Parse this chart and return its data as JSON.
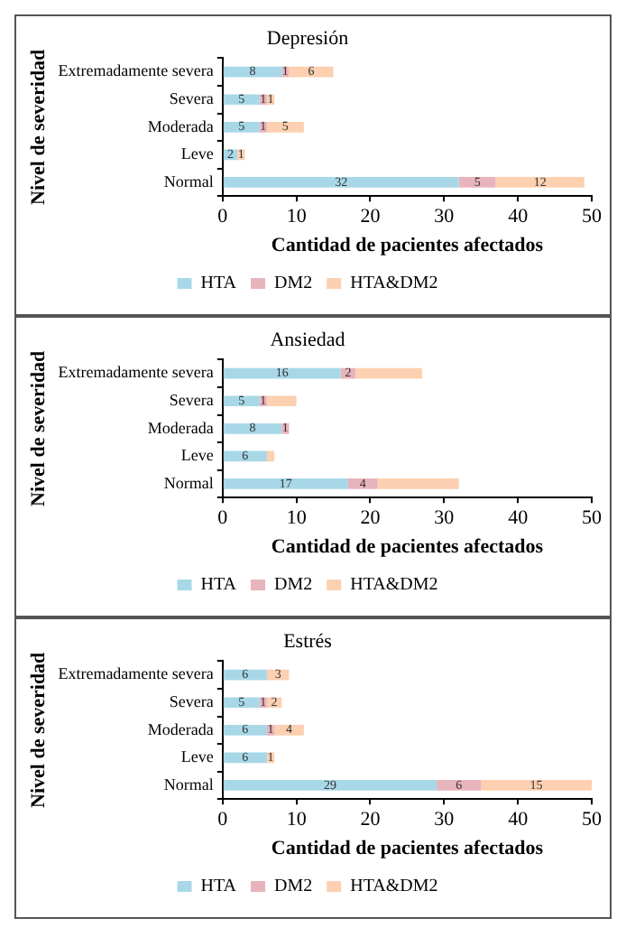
{
  "chart_data": [
    {
      "type": "bar",
      "title": "Depresión",
      "xlabel": "Cantidad de pacientes afectados",
      "ylabel": "Nivel de severidad",
      "orientation": "horizontal",
      "stacked": true,
      "categories": [
        "Extremadamente severa",
        "Severa",
        "Moderada",
        "Leve",
        "Normal"
      ],
      "xlim": [
        0,
        50
      ],
      "xticks": [
        0,
        10,
        20,
        30,
        40,
        50
      ],
      "legend": "bottom",
      "grid": false,
      "series": [
        {
          "name": "HTA",
          "color": "#a8d8e8",
          "values": [
            8,
            5,
            5,
            2,
            32
          ],
          "value_labels": [
            "8",
            "5",
            "5",
            "2",
            "32"
          ]
        },
        {
          "name": "DM2",
          "color": "#e8b4bc",
          "values": [
            1,
            1,
            1,
            0,
            5
          ],
          "value_labels": [
            "1",
            "1",
            "1",
            null,
            "5"
          ]
        },
        {
          "name": "HTA&DM2",
          "color": "#fcd0b0",
          "values": [
            6,
            1,
            5,
            1,
            12
          ],
          "value_labels": [
            "6",
            "1",
            "5",
            "1",
            "12"
          ]
        }
      ]
    },
    {
      "type": "bar",
      "title": "Ansiedad",
      "xlabel": "Cantidad de pacientes afectados",
      "ylabel": "Nivel de severidad",
      "orientation": "horizontal",
      "stacked": true,
      "categories": [
        "Extremadamente severa",
        "Severa",
        "Moderada",
        "Leve",
        "Normal"
      ],
      "xlim": [
        0,
        50
      ],
      "xticks": [
        0,
        10,
        20,
        30,
        40,
        50
      ],
      "legend": "bottom",
      "grid": false,
      "series": [
        {
          "name": "HTA",
          "color": "#a8d8e8",
          "values": [
            16,
            5,
            8,
            6,
            17
          ],
          "value_labels": [
            "16",
            "5",
            "8",
            "6",
            "17"
          ]
        },
        {
          "name": "DM2",
          "color": "#e8b4bc",
          "values": [
            2,
            1,
            1,
            0,
            4
          ],
          "value_labels": [
            "2",
            "1",
            "1",
            null,
            "4"
          ]
        },
        {
          "name": "HTA&DM2",
          "color": "#fcd0b0",
          "values": [
            9,
            4,
            0,
            1,
            11
          ],
          "value_labels": [
            null,
            null,
            null,
            null,
            null
          ]
        }
      ]
    },
    {
      "type": "bar",
      "title": "Estrés",
      "xlabel": "Cantidad de pacientes afectados",
      "ylabel": "Nivel de severidad",
      "orientation": "horizontal",
      "stacked": true,
      "categories": [
        "Extremadamente severa",
        "Severa",
        "Moderada",
        "Leve",
        "Normal"
      ],
      "xlim": [
        0,
        50
      ],
      "xticks": [
        0,
        10,
        20,
        30,
        40,
        50
      ],
      "legend": "bottom",
      "grid": false,
      "series": [
        {
          "name": "HTA",
          "color": "#a8d8e8",
          "values": [
            6,
            5,
            6,
            6,
            29
          ],
          "value_labels": [
            "6",
            "5",
            "6",
            "6",
            "29"
          ]
        },
        {
          "name": "DM2",
          "color": "#e8b4bc",
          "values": [
            0,
            1,
            1,
            0,
            6
          ],
          "value_labels": [
            null,
            "1",
            "1",
            null,
            "6"
          ]
        },
        {
          "name": "HTA&DM2",
          "color": "#fcd0b0",
          "values": [
            3,
            2,
            4,
            1,
            15
          ],
          "value_labels": [
            "3",
            "2",
            "4",
            "1",
            "15"
          ]
        }
      ]
    }
  ]
}
